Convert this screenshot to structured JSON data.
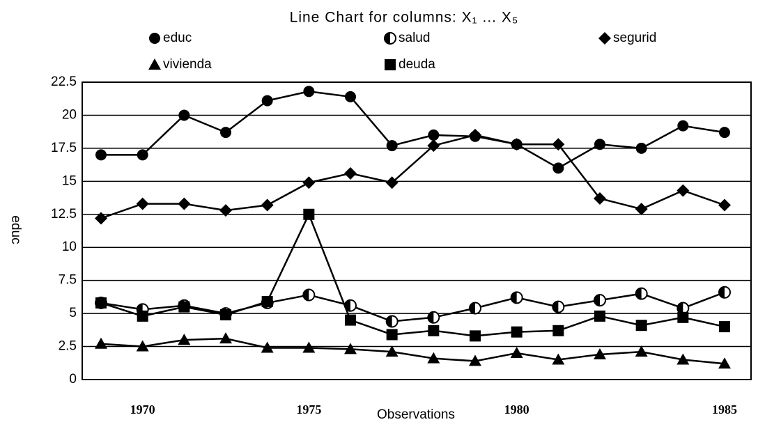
{
  "chart_data": {
    "type": "line",
    "title": "Line Chart for columns: X₁ ... X₅",
    "x_label": "Observations",
    "y_label": "educ",
    "categories": [
      null,
      "1970",
      null,
      null,
      null,
      "1975",
      null,
      null,
      null,
      null,
      "1980",
      null,
      null,
      null,
      null,
      "1985"
    ],
    "ylim": [
      0,
      22.5
    ],
    "yticks": [
      0,
      2.5,
      5,
      7.5,
      10,
      12.5,
      15,
      17.5,
      20,
      22.5
    ],
    "grid": true,
    "series": [
      {
        "name": "educ",
        "color": "#000",
        "marker": "circle",
        "values": [
          17.0,
          17.0,
          20.0,
          18.7,
          21.1,
          21.8,
          21.4,
          17.7,
          18.5,
          18.4,
          17.8,
          16.0,
          17.8,
          17.5,
          19.2,
          18.7
        ]
      },
      {
        "name": "salud",
        "color": "#000",
        "marker": "half-circle",
        "values": [
          5.8,
          5.3,
          5.6,
          5.0,
          5.8,
          6.4,
          5.6,
          4.4,
          4.7,
          5.4,
          6.2,
          5.5,
          6.0,
          6.5,
          5.4,
          6.6
        ]
      },
      {
        "name": "segurid",
        "color": "#000",
        "marker": "diamond",
        "values": [
          12.2,
          13.3,
          13.3,
          12.8,
          13.2,
          14.9,
          15.6,
          14.9,
          17.7,
          18.5,
          17.8,
          17.8,
          13.7,
          12.9,
          14.3,
          13.2
        ]
      },
      {
        "name": "vivienda",
        "color": "#000",
        "marker": "triangle",
        "values": [
          2.7,
          2.5,
          3.0,
          3.1,
          2.4,
          2.4,
          2.3,
          2.1,
          1.6,
          1.4,
          2.0,
          1.5,
          1.9,
          2.1,
          1.5,
          1.2
        ]
      },
      {
        "name": "deuda",
        "color": "#000",
        "marker": "square",
        "values": [
          5.8,
          4.8,
          5.5,
          4.9,
          5.9,
          12.5,
          4.5,
          3.4,
          3.7,
          3.3,
          3.6,
          3.7,
          4.8,
          4.1,
          4.7,
          4.0
        ]
      }
    ]
  }
}
